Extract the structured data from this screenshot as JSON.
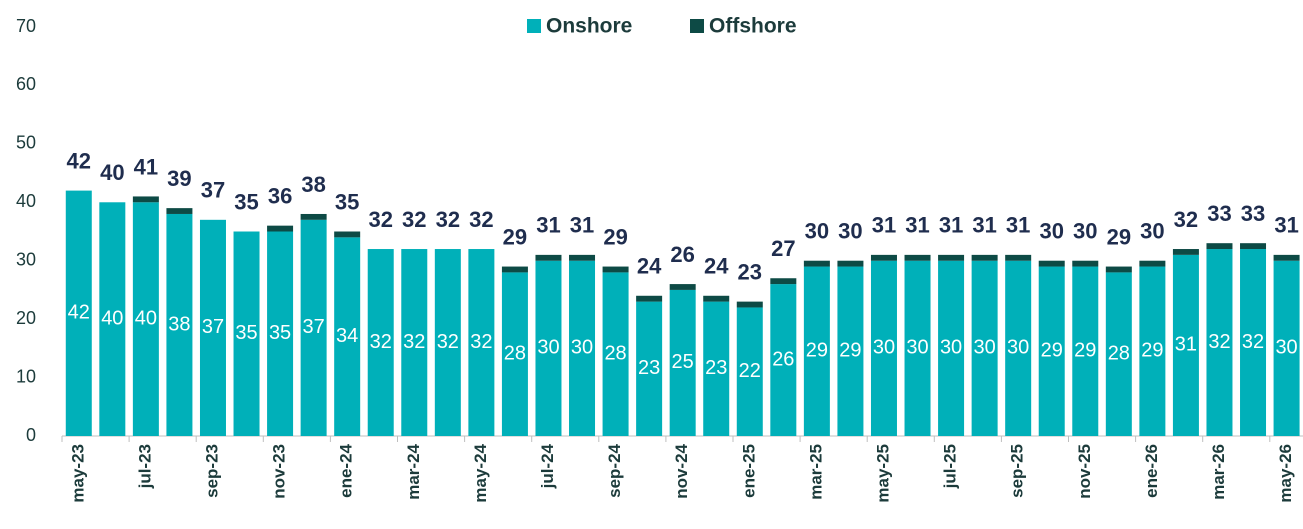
{
  "chart_data": {
    "type": "stacked_bar",
    "categories": [
      "may-23",
      null,
      "jul-23",
      null,
      "sep-23",
      null,
      "nov-23",
      null,
      "ene-24",
      null,
      "mar-24",
      null,
      "may-24",
      null,
      "jul-24",
      null,
      "sep-24",
      null,
      "nov-24",
      null,
      "ene-25",
      null,
      "mar-25",
      null,
      "may-25",
      null,
      "jul-25",
      null,
      "sep-25",
      null,
      "nov-25",
      null,
      "ene-26",
      null,
      "mar-26",
      null,
      "may-26"
    ],
    "series": [
      {
        "name": "Onshore",
        "color": "#00b0b9",
        "values": [
          42,
          40,
          40,
          38,
          37,
          35,
          35,
          37,
          34,
          32,
          32,
          32,
          32,
          28,
          30,
          30,
          28,
          23,
          25,
          23,
          22,
          26,
          29,
          29,
          30,
          30,
          30,
          30,
          30,
          29,
          29,
          28,
          29,
          31,
          32,
          32,
          30
        ]
      },
      {
        "name": "Offshore",
        "color": "#0d4a45",
        "values": [
          0,
          0,
          1,
          1,
          0,
          0,
          1,
          1,
          1,
          0,
          0,
          0,
          0,
          1,
          1,
          1,
          1,
          1,
          1,
          1,
          1,
          1,
          1,
          1,
          1,
          1,
          1,
          1,
          1,
          1,
          1,
          1,
          1,
          1,
          1,
          1,
          1
        ]
      }
    ],
    "totals": [
      42,
      40,
      41,
      39,
      37,
      35,
      36,
      38,
      35,
      32,
      32,
      32,
      32,
      29,
      31,
      31,
      29,
      24,
      26,
      24,
      23,
      27,
      30,
      30,
      31,
      31,
      31,
      31,
      31,
      30,
      30,
      29,
      30,
      32,
      33,
      33,
      31
    ],
    "ylim": [
      0,
      70
    ],
    "yticks": [
      0,
      10,
      20,
      30,
      40,
      50,
      60,
      70
    ],
    "legend": "top"
  }
}
